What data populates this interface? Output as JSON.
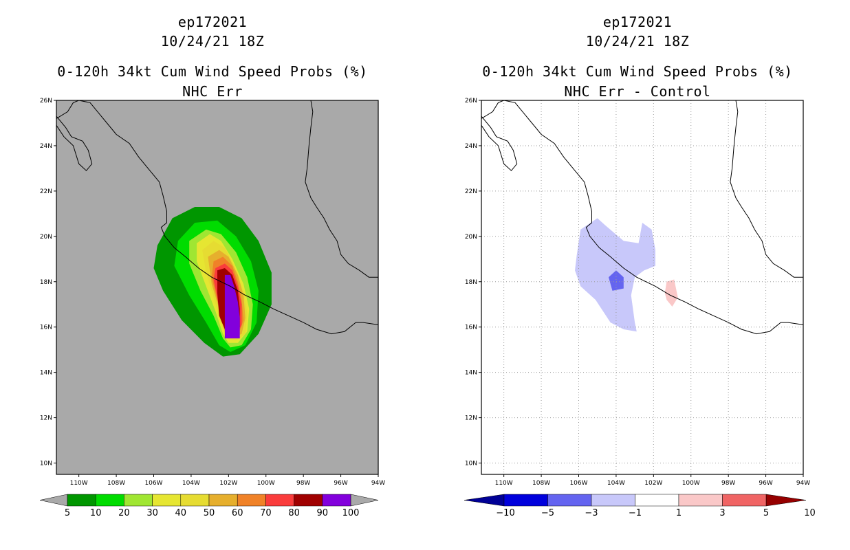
{
  "chart_data": [
    {
      "type": "heatmap",
      "storm_id": "ep172021",
      "date": "10/24/21 18Z",
      "title": "0-120h 34kt Cum Wind Speed Probs (%)",
      "subtitle": "NHC Err",
      "xlim": [
        -111.2,
        -94
      ],
      "ylim": [
        9.5,
        26
      ],
      "x_ticks": [
        "110W",
        "108W",
        "106W",
        "104W",
        "102W",
        "100W",
        "98W",
        "96W",
        "94W"
      ],
      "y_ticks": [
        "10N",
        "12N",
        "14N",
        "16N",
        "18N",
        "20N",
        "22N",
        "24N",
        "26N"
      ],
      "grid": false,
      "background": "#a9a9a9",
      "colorbar": {
        "labels": [
          "5",
          "10",
          "20",
          "30",
          "40",
          "50",
          "60",
          "70",
          "80",
          "90",
          "100"
        ],
        "colors": [
          "#009600",
          "#00dc00",
          "#a0e632",
          "#e6e632",
          "#e6dc32",
          "#e6af2d",
          "#f08228",
          "#fa3c3c",
          "#a00000",
          "#8200dc"
        ],
        "extend_color": "#a9a9a9"
      },
      "contours": [
        {
          "level": 5,
          "color": "#009600",
          "points": [
            [
              -105.8,
              19.6
            ],
            [
              -105.0,
              20.8
            ],
            [
              -103.8,
              21.3
            ],
            [
              -102.5,
              21.3
            ],
            [
              -101.3,
              20.8
            ],
            [
              -100.4,
              19.8
            ],
            [
              -99.7,
              18.4
            ],
            [
              -99.7,
              17.0
            ],
            [
              -100.4,
              15.7
            ],
            [
              -101.4,
              14.8
            ],
            [
              -102.3,
              14.7
            ],
            [
              -103.3,
              15.3
            ],
            [
              -104.5,
              16.3
            ],
            [
              -105.5,
              17.6
            ],
            [
              -106.0,
              18.6
            ]
          ]
        },
        {
          "level": 10,
          "color": "#00dc00",
          "points": [
            [
              -104.7,
              19.8
            ],
            [
              -103.8,
              20.6
            ],
            [
              -102.6,
              20.7
            ],
            [
              -101.6,
              20.0
            ],
            [
              -100.8,
              18.9
            ],
            [
              -100.4,
              17.6
            ],
            [
              -100.5,
              16.2
            ],
            [
              -101.1,
              15.2
            ],
            [
              -101.9,
              14.9
            ],
            [
              -102.5,
              15.2
            ],
            [
              -103.2,
              16.2
            ],
            [
              -104.1,
              17.4
            ],
            [
              -104.9,
              18.7
            ]
          ]
        },
        {
          "level": 20,
          "color": "#a0e632",
          "points": [
            [
              -104.1,
              19.8
            ],
            [
              -103.2,
              20.3
            ],
            [
              -102.4,
              20.1
            ],
            [
              -101.6,
              19.3
            ],
            [
              -101.0,
              18.2
            ],
            [
              -100.7,
              17.0
            ],
            [
              -100.8,
              15.9
            ],
            [
              -101.3,
              15.2
            ],
            [
              -101.9,
              15.1
            ],
            [
              -102.3,
              15.5
            ],
            [
              -102.8,
              16.5
            ],
            [
              -103.5,
              17.6
            ],
            [
              -104.1,
              18.8
            ]
          ]
        },
        {
          "level": 30,
          "color": "#e6e632",
          "points": [
            [
              -103.7,
              19.7
            ],
            [
              -103.0,
              20.1
            ],
            [
              -102.4,
              19.8
            ],
            [
              -101.8,
              19.0
            ],
            [
              -101.2,
              17.9
            ],
            [
              -100.9,
              16.8
            ],
            [
              -101.0,
              15.8
            ],
            [
              -101.5,
              15.3
            ],
            [
              -102.0,
              15.3
            ],
            [
              -102.3,
              15.7
            ],
            [
              -102.7,
              16.7
            ],
            [
              -103.2,
              17.8
            ],
            [
              -103.7,
              18.9
            ]
          ]
        },
        {
          "level": 40,
          "color": "#e6dc32",
          "points": [
            [
              -103.4,
              19.4
            ],
            [
              -102.8,
              19.8
            ],
            [
              -102.2,
              19.5
            ],
            [
              -101.7,
              18.7
            ],
            [
              -101.2,
              17.6
            ],
            [
              -101.0,
              16.6
            ],
            [
              -101.1,
              15.7
            ],
            [
              -101.6,
              15.4
            ],
            [
              -102.1,
              15.5
            ],
            [
              -102.4,
              16.2
            ],
            [
              -102.8,
              17.3
            ],
            [
              -103.2,
              18.4
            ]
          ]
        },
        {
          "level": 50,
          "color": "#e6af2d",
          "points": [
            [
              -103.1,
              19.1
            ],
            [
              -102.5,
              19.4
            ],
            [
              -102.0,
              19.1
            ],
            [
              -101.5,
              18.3
            ],
            [
              -101.2,
              17.4
            ],
            [
              -101.1,
              16.4
            ],
            [
              -101.3,
              15.7
            ],
            [
              -101.8,
              15.5
            ],
            [
              -102.2,
              15.8
            ],
            [
              -102.5,
              16.8
            ],
            [
              -102.9,
              17.9
            ]
          ]
        },
        {
          "level": 60,
          "color": "#f08228",
          "points": [
            [
              -102.8,
              18.9
            ],
            [
              -102.3,
              19.1
            ],
            [
              -101.8,
              18.7
            ],
            [
              -101.5,
              18.0
            ],
            [
              -101.3,
              17.2
            ],
            [
              -101.2,
              16.3
            ],
            [
              -101.5,
              15.6
            ],
            [
              -101.9,
              15.6
            ],
            [
              -102.3,
              16.2
            ],
            [
              -102.6,
              17.2
            ],
            [
              -102.9,
              18.2
            ]
          ]
        },
        {
          "level": 70,
          "color": "#fa3c3c",
          "points": [
            [
              -102.7,
              18.6
            ],
            [
              -102.2,
              18.8
            ],
            [
              -101.8,
              18.5
            ],
            [
              -101.5,
              17.8
            ],
            [
              -101.3,
              17.0
            ],
            [
              -101.3,
              16.1
            ],
            [
              -101.6,
              15.6
            ],
            [
              -102.0,
              15.6
            ],
            [
              -102.4,
              16.3
            ],
            [
              -102.6,
              17.3
            ],
            [
              -102.8,
              18.1
            ]
          ]
        },
        {
          "level": 80,
          "color": "#a00000",
          "points": [
            [
              -102.6,
              18.5
            ],
            [
              -102.2,
              18.6
            ],
            [
              -101.8,
              18.3
            ],
            [
              -101.5,
              17.6
            ],
            [
              -101.4,
              16.8
            ],
            [
              -101.4,
              16.0
            ],
            [
              -101.7,
              15.7
            ],
            [
              -102.1,
              15.7
            ],
            [
              -102.5,
              16.5
            ],
            [
              -102.6,
              17.5
            ]
          ]
        },
        {
          "level": 90,
          "color": "#8200dc",
          "points": [
            [
              -102.2,
              18.3
            ],
            [
              -101.9,
              18.3
            ],
            [
              -101.7,
              17.8
            ],
            [
              -101.5,
              17.1
            ],
            [
              -101.4,
              16.4
            ],
            [
              -101.4,
              15.5
            ],
            [
              -102.2,
              15.5
            ],
            [
              -102.2,
              16.4
            ]
          ]
        }
      ]
    },
    {
      "type": "heatmap",
      "storm_id": "ep172021",
      "date": "10/24/21 18Z",
      "title": "0-120h 34kt Cum Wind Speed Probs (%)",
      "subtitle": "NHC Err - Control",
      "xlim": [
        -111.2,
        -94
      ],
      "ylim": [
        9.5,
        26
      ],
      "x_ticks": [
        "110W",
        "108W",
        "106W",
        "104W",
        "102W",
        "100W",
        "98W",
        "96W",
        "94W"
      ],
      "y_ticks": [
        "10N",
        "12N",
        "14N",
        "16N",
        "18N",
        "20N",
        "22N",
        "24N",
        "26N"
      ],
      "grid": true,
      "background": "#ffffff",
      "colorbar": {
        "labels": [
          "-10",
          "-5",
          "-3",
          "-1",
          "1",
          "3",
          "5",
          "10"
        ],
        "colors": [
          "#0000dc",
          "#6464f0",
          "#c8c8fa",
          "#ffffff",
          "#fac8c8",
          "#f06464",
          "#fa0000"
        ],
        "extend_low_color": "#000096",
        "extend_high_color": "#960000"
      },
      "contours": [
        {
          "level": -1,
          "color": "#c8c8fa",
          "points": [
            [
              -106.1,
              19.2
            ],
            [
              -105.9,
              20.3
            ],
            [
              -105.0,
              20.8
            ],
            [
              -104.6,
              20.5
            ],
            [
              -103.6,
              19.8
            ],
            [
              -102.8,
              19.7
            ],
            [
              -102.6,
              20.6
            ],
            [
              -102.1,
              20.3
            ],
            [
              -101.9,
              19.4
            ],
            [
              -101.9,
              18.7
            ],
            [
              -102.5,
              18.5
            ],
            [
              -103.0,
              18.2
            ],
            [
              -103.2,
              17.4
            ],
            [
              -103.0,
              16.2
            ],
            [
              -102.9,
              15.8
            ],
            [
              -103.6,
              15.9
            ],
            [
              -104.3,
              16.2
            ],
            [
              -105.1,
              17.2
            ],
            [
              -105.9,
              17.8
            ],
            [
              -106.2,
              18.5
            ]
          ]
        },
        {
          "level": -3,
          "color": "#6464f0",
          "points": [
            [
              -104.4,
              18.2
            ],
            [
              -104.0,
              18.5
            ],
            [
              -103.6,
              18.2
            ],
            [
              -103.6,
              17.7
            ],
            [
              -104.2,
              17.6
            ]
          ]
        },
        {
          "level": 1,
          "color": "#fac8c8",
          "points": [
            [
              -101.3,
              18.0
            ],
            [
              -100.9,
              18.1
            ],
            [
              -100.7,
              17.3
            ],
            [
              -101.0,
              16.9
            ],
            [
              -101.3,
              17.2
            ],
            [
              -101.4,
              17.5
            ]
          ]
        }
      ]
    }
  ],
  "map": {
    "coastline": [
      [
        -111.2,
        25.2
      ],
      [
        -110.6,
        25.5
      ],
      [
        -110.3,
        25.9
      ],
      [
        -110.0,
        26.0
      ],
      [
        -109.4,
        25.9
      ],
      [
        -108.9,
        25.4
      ],
      [
        -108.5,
        25.0
      ],
      [
        -108.0,
        24.5
      ],
      [
        -107.3,
        24.1
      ],
      [
        -106.8,
        23.5
      ],
      [
        -106.2,
        22.9
      ],
      [
        -105.7,
        22.4
      ],
      [
        -105.5,
        21.8
      ],
      [
        -105.3,
        21.1
      ],
      [
        -105.3,
        20.6
      ],
      [
        -105.6,
        20.4
      ],
      [
        -105.4,
        20.0
      ],
      [
        -104.9,
        19.5
      ],
      [
        -104.3,
        19.1
      ],
      [
        -103.6,
        18.6
      ],
      [
        -102.9,
        18.2
      ],
      [
        -102.4,
        18.0
      ],
      [
        -101.9,
        17.8
      ],
      [
        -101.1,
        17.4
      ],
      [
        -100.3,
        17.1
      ],
      [
        -99.6,
        16.8
      ],
      [
        -98.8,
        16.5
      ],
      [
        -98.0,
        16.2
      ],
      [
        -97.3,
        15.9
      ],
      [
        -96.5,
        15.7
      ],
      [
        -95.8,
        15.8
      ],
      [
        -95.2,
        16.2
      ],
      [
        -94.8,
        16.2
      ],
      [
        -94.0,
        16.1
      ]
    ],
    "gulf_coast": [
      [
        -97.6,
        26.0
      ],
      [
        -97.5,
        25.5
      ],
      [
        -97.6,
        24.8
      ],
      [
        -97.7,
        24.0
      ],
      [
        -97.8,
        23.0
      ],
      [
        -97.9,
        22.4
      ],
      [
        -97.6,
        21.7
      ],
      [
        -97.3,
        21.3
      ],
      [
        -96.9,
        20.8
      ],
      [
        -96.6,
        20.3
      ],
      [
        -96.2,
        19.8
      ],
      [
        -96.0,
        19.2
      ],
      [
        -95.6,
        18.8
      ],
      [
        -95.0,
        18.5
      ],
      [
        -94.5,
        18.2
      ],
      [
        -94.0,
        18.2
      ]
    ],
    "baja": [
      [
        -111.2,
        24.9
      ],
      [
        -110.8,
        24.4
      ],
      [
        -110.3,
        24.0
      ],
      [
        -110.0,
        23.2
      ],
      [
        -109.6,
        22.9
      ],
      [
        -109.3,
        23.2
      ],
      [
        -109.5,
        23.8
      ],
      [
        -109.8,
        24.2
      ],
      [
        -110.4,
        24.4
      ],
      [
        -110.7,
        24.8
      ],
      [
        -111.2,
        25.3
      ]
    ]
  }
}
